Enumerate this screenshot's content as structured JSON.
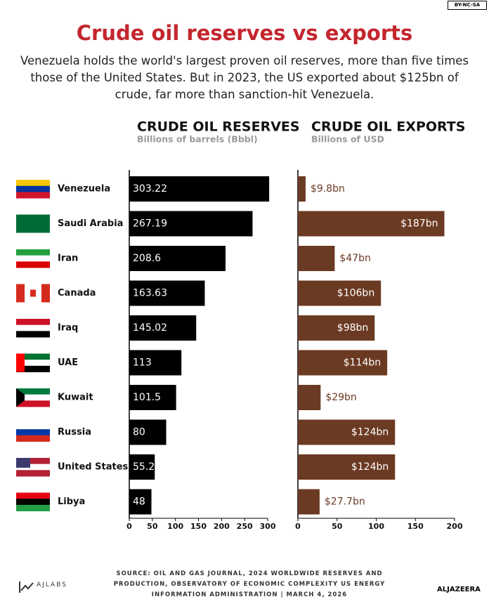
{
  "badge": "BY-NC-SA",
  "title": "Crude oil reserves vs exports",
  "subtitle": "Venezuela holds the world's largest proven oil reserves, more than five times those of the United States. But in 2023, the US exported about $125bn of crude, far more than sanction-hit Venezuela.",
  "chart_data": [
    {
      "type": "bar",
      "orientation": "horizontal",
      "title": "CRUDE OIL RESERVES",
      "subtitle": "Billions of barrels (Bbbl)",
      "categories": [
        "Venezuela",
        "Saudi Arabia",
        "Iran",
        "Canada",
        "Iraq",
        "UAE",
        "Kuwait",
        "Russia",
        "United States",
        "Libya"
      ],
      "values": [
        303.22,
        267.19,
        208.6,
        163.63,
        145.02,
        113,
        101.5,
        80,
        55.2,
        48
      ],
      "color": "#000000",
      "xlim": [
        0,
        300
      ],
      "xticks": [
        0,
        50,
        100,
        150,
        200,
        250,
        300
      ]
    },
    {
      "type": "bar",
      "orientation": "horizontal",
      "title": "CRUDE OIL EXPORTS",
      "subtitle": "Billions of USD",
      "values": [
        9.8,
        187,
        47,
        106,
        98,
        114,
        29,
        124,
        124,
        27.7
      ],
      "value_labels": [
        "$9.8bn",
        "$187bn",
        "$47bn",
        "$106bn",
        "$98bn",
        "$114bn",
        "$29bn",
        "$124bn",
        "$124bn",
        "$27.7bn"
      ],
      "color": "#6b3a22",
      "xlim": [
        0,
        200
      ],
      "xticks": [
        0,
        50,
        100,
        150,
        200
      ]
    }
  ],
  "source": "SOURCE:  OIL AND GAS JOURNAL, 2024 WORLDWIDE RESERVES AND PRODUCTION, OBSERVATORY OF ECONOMIC COMPLEXITY US ENERGY INFORMATION ADMINISTRATION   |   MARCH 4, 2026",
  "brand_left": "AJLABS",
  "brand_right": "ALJAZEERA"
}
